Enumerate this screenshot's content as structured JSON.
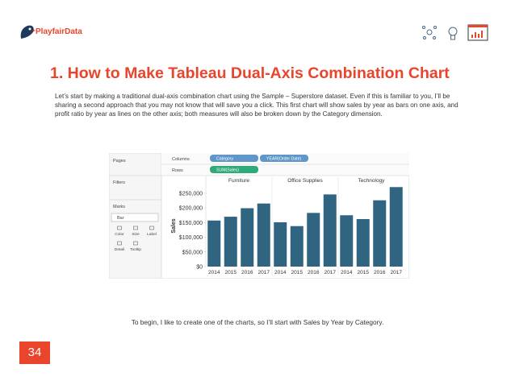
{
  "header": {
    "logo": "PlayfairData"
  },
  "title": "1. How to Make Tableau Dual-Axis Combination Chart",
  "paragraph": "Let’s start by making a traditional dual-axis combination chart using the Sample – Superstore dataset. Even if this is familiar to you, I’ll be sharing a second approach that you may not know that will save you a click. This first chart will show sales by year as bars on one axis, and profit ratio by year as lines on the other axis; both measures will also be broken down by the Category dimension.",
  "tableau": {
    "pages": "Pages",
    "filters": "Filters",
    "marks": "Marks",
    "mark_type": "Bar",
    "mark_cards": [
      "Color",
      "Size",
      "Label",
      "Detail",
      "Tooltip"
    ],
    "columns_label": "Columns",
    "columns": [
      "Category",
      "YEAR(Order Date)"
    ],
    "rows_label": "Rows",
    "rows": [
      "SUM(Sales)"
    ]
  },
  "chart_data": {
    "type": "bar",
    "y_label": "Sales",
    "color": "#2f6580",
    "ylim": [
      0,
      280000
    ],
    "yticks": [
      {
        "value": 0,
        "label": "$0"
      },
      {
        "value": 50000,
        "label": "$50,000"
      },
      {
        "value": 100000,
        "label": "$100,000"
      },
      {
        "value": 150000,
        "label": "$150,000"
      },
      {
        "value": 200000,
        "label": "$200,000"
      },
      {
        "value": 250000,
        "label": "$250,000"
      }
    ],
    "panes": [
      {
        "name": "Furniture",
        "categories": [
          "2014",
          "2015",
          "2016",
          "2017"
        ],
        "values": [
          157000,
          170000,
          199000,
          215000
        ]
      },
      {
        "name": "Office Supplies",
        "categories": [
          "2014",
          "2015",
          "2016",
          "2017"
        ],
        "values": [
          151000,
          138000,
          183000,
          246000
        ]
      },
      {
        "name": "Technology",
        "categories": [
          "2014",
          "2015",
          "2016",
          "2017"
        ],
        "values": [
          175000,
          162000,
          226000,
          271000
        ]
      }
    ]
  },
  "caption": "To begin, I like to create one of the charts, so I’ll start with Sales by Year by Category.",
  "page_number": "34"
}
